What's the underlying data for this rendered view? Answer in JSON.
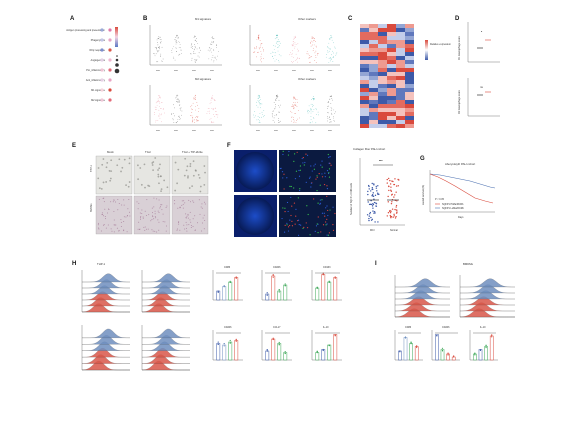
{
  "panels": {
    "A": {
      "letter": "A",
      "rows": [
        "Antigen processing and presentation",
        "Phagocytosis",
        "IFNγ response",
        "Angiogenesis",
        "Pro_inflammatory",
        "Anti_inflammatory",
        "M1 signature",
        "M2 signature"
      ],
      "cols": [
        "HLADR+CD11c−",
        "HLADR+CD11c+"
      ]
    },
    "B": {
      "letter": "B",
      "group1": "M1 signature",
      "group2": "M2 signature",
      "group3": "Other markers",
      "group4": "Other markers",
      "genes1": [
        "CD86",
        "IRF5",
        "IL1B",
        "TNF"
      ],
      "genes2": [
        "CD163",
        "MRC1",
        "CD209",
        "MSR1",
        "CLEC7A"
      ],
      "sig": "****"
    },
    "C": {
      "letter": "C",
      "legend": "Relative expression"
    },
    "D": {
      "letter": "D",
      "y1": "M1 macrophage score",
      "y2": "M2 macrophage score",
      "sig1": "*",
      "sig2": "ns"
    },
    "E": {
      "letter": "E",
      "cols": [
        "Mock",
        "TGd",
        "TGd + TIP-2k/2e"
      ],
      "rows": [
        "THP-1",
        "BMDMs"
      ]
    },
    "F": {
      "letter": "F",
      "title": "Collagen fiber PAH cohort",
      "ylabel": "Number of SQFP+ CD68 cells",
      "groups": [
        "MCI",
        "Normal"
      ],
      "sig": "***"
    },
    "G": {
      "letter": "G",
      "title": "Aberystwyth PAH cohort",
      "ylabel": "overall survival (%)",
      "xlabel": "Days",
      "p": "P < 0.05",
      "legend": [
        "SQFP1 HiMarRCRb",
        "SQFP1 LoMarRCRb"
      ]
    },
    "H": {
      "letter": "H",
      "hist_title": "THP-1",
      "charts": [
        "CD86",
        "CD206",
        "CD163",
        "CD206",
        "CCL17",
        "IL-10"
      ]
    },
    "I": {
      "letter": "I",
      "hist_title": "BMDMs",
      "charts": [
        "CD86",
        "CD206",
        "IL-10"
      ]
    }
  },
  "colors": {
    "red": "#d94a3d",
    "blue": "#4a6fb0",
    "pink": "#e88a9a",
    "teal": "#3fb4b0",
    "green": "#3aa655",
    "hist_blue": "#6f8fbf",
    "hist_red": "#d9574a"
  }
}
